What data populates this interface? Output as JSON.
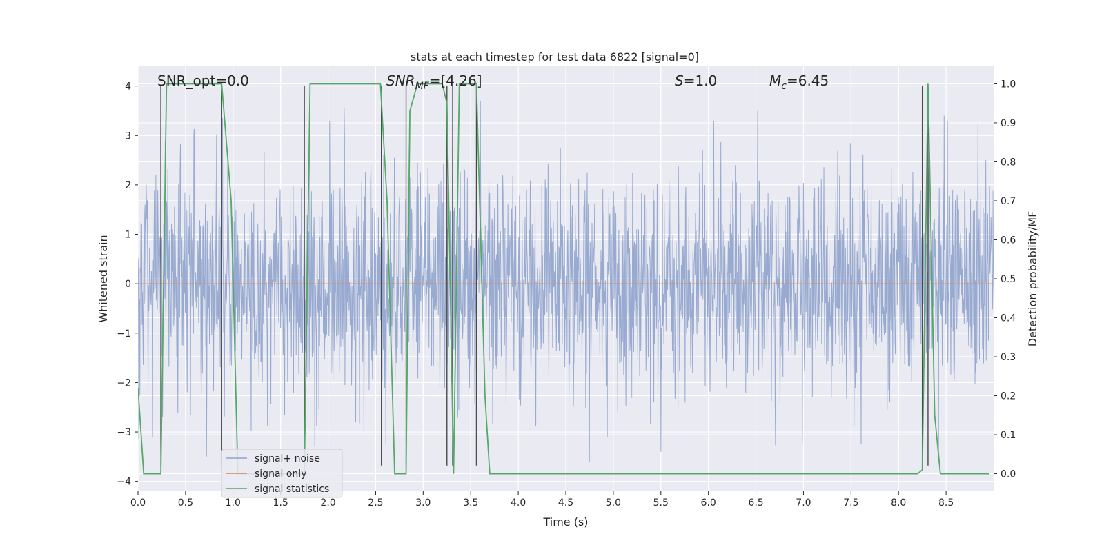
{
  "chart_data": {
    "type": "line",
    "title": "stats at each timestep for test data 6822 [signal=0]",
    "xlabel": "Time (s)",
    "ylabel": "Whitened strain",
    "ylabel_right": "Detection probability/MF",
    "xlim": [
      0.0,
      9.0
    ],
    "ylim": [
      -4.2,
      4.4
    ],
    "ylim_right": [
      -0.045,
      1.045
    ],
    "x_ticks": [
      "0.0",
      "0.5",
      "1.0",
      "1.5",
      "2.0",
      "2.5",
      "3.0",
      "3.5",
      "4.0",
      "4.5",
      "5.0",
      "5.5",
      "6.0",
      "6.5",
      "7.0",
      "7.5",
      "8.0",
      "8.5"
    ],
    "y_ticks": [
      "−4",
      "−3",
      "−2",
      "−1",
      "0",
      "1",
      "2",
      "3",
      "4"
    ],
    "y_ticks_right": [
      "0.0",
      "0.1",
      "0.2",
      "0.3",
      "0.4",
      "0.5",
      "0.6",
      "0.7",
      "0.8",
      "0.9",
      "1.0"
    ],
    "annotations": {
      "snr_opt": "SNR_opt=0.0",
      "snr_mf_sym": "SNR",
      "snr_mf_sub": "MF",
      "snr_mf_val": "=[4.26]",
      "s_sym": "S",
      "s_val": "=1.0",
      "mc_sym": "M",
      "mc_sub": "c",
      "mc_val": "=6.45"
    },
    "legend": {
      "position": "lower-left",
      "entries": [
        "signal+ noise",
        "signal only",
        "signal statistics"
      ]
    },
    "colors": {
      "noise": "#8fa3cc",
      "signal": "#dd8452",
      "stats": "#55a868",
      "vlines": "#4a4a4a",
      "background": "#eaeaf2",
      "grid": "#ffffff"
    },
    "noise_series": {
      "name": "signal+ noise",
      "seed": 6822,
      "n_samples": 2300,
      "t_start": 0.0,
      "t_end": 9.0,
      "sigma": 1.1,
      "peak_events": [
        {
          "t": 0.72,
          "v": 3.8
        },
        {
          "t": 0.89,
          "v": 3.35
        },
        {
          "t": 1.81,
          "v": 3.85
        },
        {
          "t": 2.17,
          "v": 3.55
        },
        {
          "t": 3.6,
          "v": 3.7
        },
        {
          "t": 6.52,
          "v": 3.5
        },
        {
          "t": 8.48,
          "v": 3.4
        },
        {
          "t": 0.72,
          "v": -3.5
        },
        {
          "t": 1.86,
          "v": -3.3
        },
        {
          "t": 4.75,
          "v": -3.6
        },
        {
          "t": 5.5,
          "v": -3.4
        },
        {
          "t": 8.42,
          "v": -3.6
        }
      ]
    },
    "signal_series": {
      "name": "signal only",
      "x": [
        0.0,
        9.0
      ],
      "y": [
        0.0,
        0.0
      ]
    },
    "stats_series": {
      "name": "signal statistics",
      "x": [
        0.0,
        0.06,
        0.15,
        0.24,
        0.3,
        0.45,
        0.88,
        0.98,
        1.05,
        1.6,
        1.75,
        1.81,
        2.0,
        2.55,
        2.62,
        2.7,
        2.82,
        2.86,
        2.94,
        3.2,
        3.25,
        3.32,
        3.38,
        3.56,
        3.65,
        3.7,
        8.2,
        8.25,
        8.31,
        8.38,
        8.44,
        8.95
      ],
      "y": [
        0.22,
        0.0,
        0.0,
        0.0,
        1.0,
        1.0,
        1.0,
        0.7,
        0.0,
        0.0,
        0.0,
        1.0,
        1.0,
        1.0,
        0.7,
        0.0,
        0.0,
        0.93,
        1.0,
        1.0,
        0.95,
        0.0,
        1.0,
        1.0,
        0.2,
        0.0,
        0.0,
        0.01,
        1.0,
        0.15,
        0.0,
        0.0
      ]
    },
    "vertical_lines": {
      "x": [
        0.24,
        0.88,
        1.75,
        2.56,
        2.82,
        3.25,
        3.31,
        3.56,
        8.25,
        8.31
      ],
      "y_top": 4.0,
      "y_bottom": -3.68
    }
  }
}
